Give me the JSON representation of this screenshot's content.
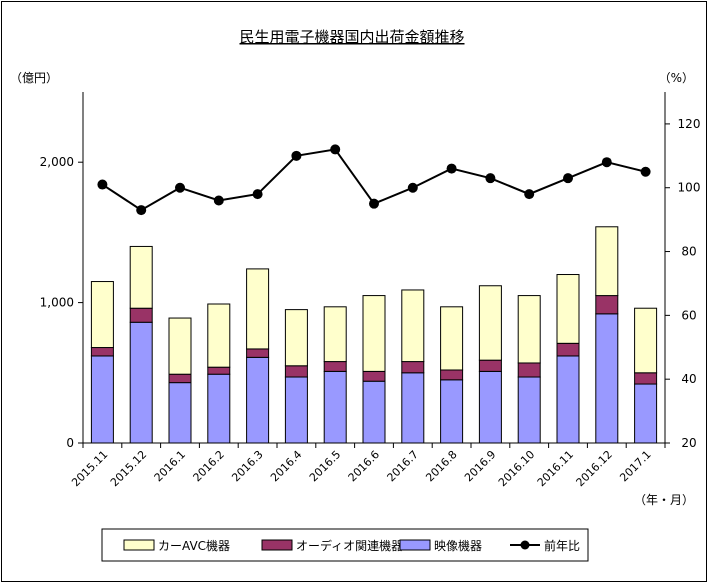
{
  "chart_data": {
    "type": "bar",
    "stacked": true,
    "title": "民生用電子機器国内出荷金額推移",
    "ylabel_left": "（億円）",
    "ylabel_right": "（%）",
    "xlabel": "（年・月）",
    "ylim_left": [
      0,
      2500
    ],
    "yticks_left": [
      "0",
      "1,000",
      "2,000"
    ],
    "ylim_right": [
      20,
      130
    ],
    "yticks_right": [
      "20",
      "40",
      "60",
      "80",
      "100",
      "120"
    ],
    "grid": false,
    "legend_position": "bottom",
    "categories": [
      "2015.11",
      "2015.12",
      "2016.1",
      "2016.2",
      "2016.3",
      "2016.4",
      "2016.5",
      "2016.6",
      "2016.7",
      "2016.8",
      "2016.9",
      "2016.10",
      "2016.11",
      "2016.12",
      "2017.1"
    ],
    "series": [
      {
        "name": "映像機器",
        "values": [
          620,
          860,
          430,
          490,
          610,
          470,
          510,
          440,
          500,
          450,
          510,
          470,
          620,
          920,
          420
        ],
        "color": "#9999ff"
      },
      {
        "name": "オーディオ関連機器",
        "values": [
          60,
          100,
          60,
          50,
          60,
          80,
          70,
          70,
          80,
          70,
          80,
          100,
          90,
          130,
          80
        ],
        "color": "#993366"
      },
      {
        "name": "カーAVC機器",
        "values": [
          470,
          440,
          400,
          450,
          570,
          400,
          390,
          540,
          510,
          450,
          530,
          480,
          490,
          490,
          460
        ],
        "color": "#ffffcc"
      },
      {
        "name": "前年比",
        "type": "line",
        "axis": "right",
        "values": [
          101,
          93,
          100,
          96,
          98,
          110,
          112,
          95,
          100,
          106,
          103,
          98,
          103,
          108,
          105
        ],
        "color": "#000000"
      }
    ]
  }
}
